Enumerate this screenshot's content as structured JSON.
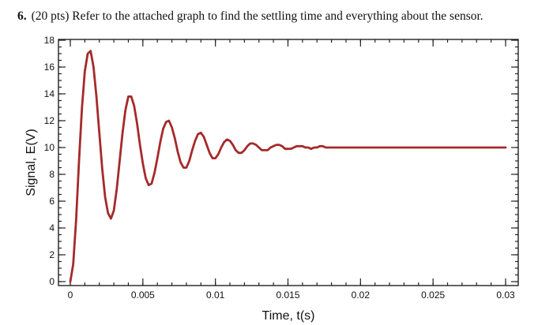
{
  "question": {
    "number": "6.",
    "text": "(20 pts) Refer to the attached graph to find the settling time and everything about the sensor."
  },
  "chart_data": {
    "type": "line",
    "xlabel": "Time, t(s)",
    "ylabel": "Signal, E(V)",
    "xlim": [
      0,
      0.03
    ],
    "ylim": [
      0,
      18
    ],
    "x_ticks": [
      0,
      0.005,
      0.01,
      0.015,
      0.02,
      0.025,
      0.03
    ],
    "x_tick_labels": [
      "0",
      "0.005",
      "0.01",
      "0.015",
      "0.02",
      "0.025",
      "0.03"
    ],
    "y_ticks": [
      0,
      2,
      4,
      6,
      8,
      10,
      12,
      14,
      16,
      18
    ],
    "y_tick_labels": [
      "0",
      "2",
      "4",
      "6",
      "8",
      "10",
      "12",
      "14",
      "16",
      "18"
    ],
    "grid": false,
    "line_color": "#a52a2a",
    "series": [
      {
        "x": [
          0,
          0.0002,
          0.0004,
          0.0006,
          0.0008,
          0.001,
          0.0012,
          0.0014,
          0.0016,
          0.0018,
          0.002,
          0.0022,
          0.0024,
          0.0026,
          0.0028,
          0.003,
          0.0032,
          0.0034,
          0.0036,
          0.0038,
          0.004,
          0.0042,
          0.0044,
          0.0046,
          0.0048,
          0.005,
          0.0052,
          0.0054,
          0.0056,
          0.0058,
          0.006,
          0.0062,
          0.0064,
          0.0066,
          0.0068,
          0.007,
          0.0072,
          0.0074,
          0.0076,
          0.0078,
          0.008,
          0.0082,
          0.0084,
          0.0086,
          0.0088,
          0.009,
          0.0092,
          0.0094,
          0.0096,
          0.0098,
          0.01,
          0.0102,
          0.0104,
          0.0106,
          0.0108,
          0.011,
          0.0112,
          0.0114,
          0.0116,
          0.0118,
          0.012,
          0.0122,
          0.0124,
          0.0126,
          0.0128,
          0.013,
          0.0132,
          0.0134,
          0.0136,
          0.0138,
          0.014,
          0.0142,
          0.0144,
          0.0146,
          0.0148,
          0.015,
          0.0152,
          0.0154,
          0.0156,
          0.0158,
          0.016,
          0.0162,
          0.0164,
          0.0166,
          0.0168,
          0.017,
          0.0172,
          0.0174,
          0.0176,
          0.0178,
          0.018,
          0.0182,
          0.0184,
          0.0186,
          0.0188,
          0.019,
          0.0192,
          0.0194,
          0.0196,
          0.0198,
          0.02,
          0.0202,
          0.0204,
          0.0206,
          0.0208,
          0.021,
          0.0212,
          0.0214,
          0.0216,
          0.0218,
          0.022,
          0.0222,
          0.0224,
          0.0226,
          0.0228,
          0.023,
          0.0232,
          0.0234,
          0.0236,
          0.0238,
          0.024,
          0.0242,
          0.0244,
          0.0246,
          0.0248,
          0.025,
          0.0252,
          0.0254,
          0.0256,
          0.0258,
          0.026,
          0.0262,
          0.0264,
          0.0266,
          0.0268,
          0.027,
          0.0272,
          0.0274,
          0.0276,
          0.0278,
          0.028,
          0.0282,
          0.0284,
          0.0286,
          0.0288,
          0.029,
          0.0292,
          0.0294,
          0.0296,
          0.0298,
          0.03
        ],
        "y": [
          0,
          1.3,
          4.6,
          9.0,
          12.9,
          15.7,
          17.0,
          17.2,
          16.0,
          13.8,
          11.1,
          8.4,
          6.3,
          5.1,
          4.7,
          5.3,
          6.9,
          9.0,
          11.1,
          12.8,
          13.8,
          13.8,
          13.1,
          11.8,
          10.2,
          8.8,
          7.7,
          7.2,
          7.3,
          8.1,
          9.2,
          10.4,
          11.4,
          11.9,
          12.0,
          11.5,
          10.7,
          9.7,
          8.9,
          8.5,
          8.5,
          9.0,
          9.8,
          10.5,
          11.0,
          11.1,
          10.8,
          10.2,
          9.6,
          9.2,
          9.2,
          9.5,
          10.0,
          10.4,
          10.6,
          10.5,
          10.2,
          9.8,
          9.6,
          9.6,
          9.8,
          10.1,
          10.3,
          10.3,
          10.2,
          10.0,
          9.8,
          9.8,
          9.8,
          10.0,
          10.1,
          10.2,
          10.2,
          10.1,
          9.9,
          9.9,
          9.9,
          10.0,
          10.1,
          10.1,
          10.1,
          10.0,
          10.0,
          9.9,
          10.0,
          10.0,
          10.1,
          10.1,
          10.0,
          10.0,
          10.0,
          10.0,
          10.0,
          10.0,
          10.0,
          10.0,
          10.0,
          10.0,
          10.0,
          10.0,
          10.0,
          10.0,
          10.0,
          10.0,
          10.0,
          10.0,
          10.0,
          10.0,
          10.0,
          10.0,
          10.0,
          10.0,
          10.0,
          10.0,
          10.0,
          10.0,
          10.0,
          10.0,
          10.0,
          10.0,
          10.0,
          10.0,
          10.0,
          10.0,
          10.0,
          10.0,
          10.0,
          10.0,
          10.0,
          10.0,
          10.0,
          10.0,
          10.0,
          10.0,
          10.0,
          10.0,
          10.0,
          10.0,
          10.0,
          10.0,
          10.0,
          10.0,
          10.0,
          10.0,
          10.0,
          10.0,
          10.0,
          10.0,
          10.0,
          10.0,
          10.0
        ]
      }
    ]
  }
}
